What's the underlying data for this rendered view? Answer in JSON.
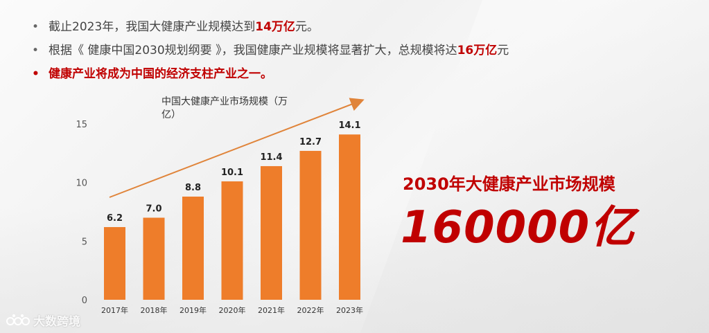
{
  "bullets": [
    {
      "pre": "截止2023年，我国大健康产业规模达到",
      "highlight": "14万亿",
      "post": "元。"
    },
    {
      "pre": "根据《 健康中国2030规划纲要 》，我国健康产业规模将显著扩大，总规模将达",
      "highlight": "16万亿",
      "post": "元"
    },
    {
      "text": "健康产业将成为中国的经济支柱产业之一。"
    }
  ],
  "bullet_marker": "•",
  "projection": {
    "caption": "2030年大健康产业市场规模",
    "value": "160000亿"
  },
  "watermark": {
    "text": "大数跨境",
    "logo_icon": "paw-logo-icon"
  },
  "colors": {
    "bar": "#ee7d2a",
    "accent_red": "#c00000",
    "arrow": "#e0843a",
    "text": "#444444"
  },
  "chart_data": {
    "type": "bar",
    "title": "中国大健康产业市场规模（万亿）",
    "categories": [
      "2017年",
      "2018年",
      "2019年",
      "2020年",
      "2021年",
      "2022年",
      "2023年"
    ],
    "values": [
      6.2,
      7.0,
      8.8,
      10.1,
      11.4,
      12.7,
      14.1
    ],
    "value_labels": [
      "6.2",
      "7.0",
      "8.8",
      "10.1",
      "11.4",
      "12.7",
      "14.1"
    ],
    "ylim": [
      0,
      15
    ],
    "yticks": [
      "0",
      "5",
      "10",
      "15"
    ],
    "xlabel": "",
    "ylabel": "",
    "grid": false,
    "legend": "none",
    "trend_arrow": true
  }
}
